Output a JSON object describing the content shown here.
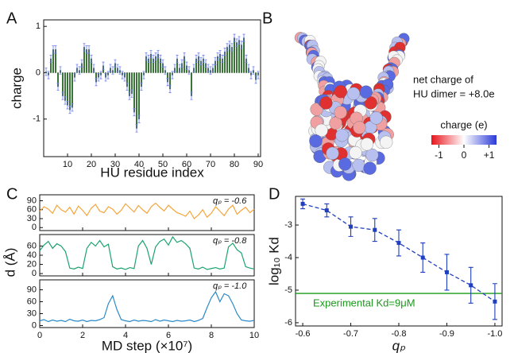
{
  "panel_b": {
    "label": "B",
    "annotation_lines": [
      "net charge of",
      "HU dimer = +8.0e"
    ],
    "colorbar": {
      "title": "charge (e)",
      "lim": [
        -1.3,
        1.3
      ],
      "ticks": [
        -1,
        0,
        {
          "value": 1,
          "label": "+1"
        }
      ]
    }
  },
  "chart_data": [
    {
      "panel_label": "A",
      "type": "bar",
      "xlabel": "HU residue index",
      "ylabel": "charge",
      "color": "#3f8f3a",
      "error_color": "#6a7cf0",
      "x": [
        1,
        2,
        3,
        4,
        5,
        6,
        7,
        8,
        9,
        10,
        11,
        12,
        13,
        14,
        15,
        16,
        17,
        18,
        19,
        20,
        21,
        22,
        23,
        24,
        25,
        26,
        27,
        28,
        29,
        30,
        31,
        32,
        33,
        34,
        35,
        36,
        37,
        38,
        39,
        40,
        41,
        42,
        43,
        44,
        45,
        46,
        47,
        48,
        49,
        50,
        51,
        52,
        53,
        54,
        55,
        56,
        57,
        58,
        59,
        60,
        61,
        62,
        63,
        64,
        65,
        66,
        67,
        68,
        69,
        70,
        71,
        72,
        73,
        74,
        75,
        76,
        77,
        78,
        79,
        80,
        81,
        82,
        83,
        84,
        85,
        86,
        87,
        88,
        89,
        90
      ],
      "values": [
        0.02,
        -0.05,
        0.3,
        0.5,
        0.5,
        -0.3,
        0.05,
        -0.5,
        -0.6,
        -0.7,
        -0.8,
        -0.75,
        -0.1,
        0.1,
        0.05,
        0.2,
        0.55,
        0.5,
        0.5,
        0.3,
        0.1,
        -0.2,
        -0.1,
        -0.05,
        0.15,
        -0.1,
        -0.05,
        0.1,
        0.05,
        0.2,
        0.1,
        0.05,
        -0.05,
        -0.1,
        -0.3,
        -0.5,
        -0.45,
        -0.85,
        -1.2,
        -1.0,
        -0.3,
        -0.05,
        0.35,
        0.3,
        0.4,
        0.3,
        0.35,
        0.4,
        0.3,
        0.2,
        0.05,
        -0.2,
        -0.35,
        -0.05,
        0.1,
        0.3,
        0.1,
        0.2,
        0.35,
        0.15,
        0.05,
        -0.5,
        0.1,
        0.3,
        0.35,
        0.25,
        0.3,
        0.2,
        0.1,
        0.05,
        0.1,
        0.25,
        0.35,
        0.4,
        0.3,
        0.45,
        0.55,
        0.6,
        0.55,
        0.75,
        0.65,
        0.7,
        0.6,
        0.75,
        0.3,
        0.1,
        -0.05,
        0.05,
        -0.15,
        -0.05
      ],
      "error": 0.08,
      "xlim": [
        0,
        91
      ],
      "ylim": [
        -1.81,
        1.14
      ],
      "xticks": [
        10,
        20,
        30,
        40,
        50,
        60,
        70,
        80,
        90
      ],
      "yticks": [
        -1,
        0,
        1
      ]
    },
    {
      "panel_label": "C",
      "type": "line",
      "xlabel": "MD step (×10⁷)",
      "ylabel": "d (Å)",
      "xlim": [
        0,
        10
      ],
      "xticks": [
        0,
        2,
        4,
        6,
        8,
        10
      ],
      "x": [
        0,
        0.2,
        0.4,
        0.6,
        0.8,
        1,
        1.2,
        1.4,
        1.6,
        1.8,
        2,
        2.2,
        2.4,
        2.6,
        2.8,
        3,
        3.2,
        3.4,
        3.6,
        3.8,
        4,
        4.2,
        4.4,
        4.6,
        4.8,
        5,
        5.2,
        5.4,
        5.6,
        5.8,
        6,
        6.2,
        6.4,
        6.6,
        6.8,
        7,
        7.2,
        7.4,
        7.6,
        7.8,
        8,
        8.2,
        8.4,
        8.6,
        8.8,
        9,
        9.2,
        9.4,
        9.6,
        9.8,
        10
      ],
      "subplots": [
        {
          "annotation": "qₚ = -0.6",
          "color": "#f5a53a",
          "ylim": [
            -10,
            110
          ],
          "yticks": [
            0,
            30,
            60,
            90
          ],
          "values": [
            55,
            70,
            62,
            48,
            75,
            60,
            52,
            68,
            45,
            72,
            58,
            40,
            65,
            78,
            55,
            50,
            70,
            62,
            45,
            58,
            80,
            66,
            52,
            74,
            60,
            48,
            70,
            82,
            68,
            56,
            75,
            62,
            50,
            45,
            38,
            55,
            30,
            42,
            60,
            35,
            48,
            70,
            55,
            40,
            62,
            75,
            45,
            58,
            68,
            50,
            62
          ]
        },
        {
          "annotation": "qₚ = -0.8",
          "color": "#1aa36e",
          "ylim": [
            -5,
            85
          ],
          "yticks": [
            0,
            20,
            40,
            60
          ],
          "values": [
            50,
            62,
            70,
            55,
            65,
            60,
            48,
            12,
            10,
            14,
            11,
            55,
            68,
            60,
            72,
            58,
            64,
            15,
            10,
            12,
            9,
            13,
            11,
            60,
            72,
            55,
            20,
            58,
            70,
            75,
            62,
            80,
            68,
            72,
            65,
            55,
            12,
            10,
            14,
            9,
            11,
            13,
            10,
            12,
            58,
            66,
            52,
            45,
            15,
            12,
            10
          ]
        },
        {
          "annotation": "qₚ = -1.0",
          "color": "#2a8ac8",
          "ylim": [
            -5,
            115
          ],
          "yticks": [
            0,
            30,
            60,
            90
          ],
          "values": [
            12,
            15,
            10,
            14,
            11,
            13,
            10,
            16,
            12,
            11,
            14,
            10,
            13,
            12,
            15,
            20,
            55,
            75,
            40,
            15,
            12,
            10,
            14,
            11,
            13,
            12,
            10,
            15,
            11,
            14,
            12,
            10,
            13,
            11,
            12,
            14,
            10,
            13,
            18,
            45,
            70,
            85,
            60,
            80,
            75,
            55,
            30,
            14,
            12,
            11,
            13
          ]
        }
      ]
    },
    {
      "panel_label": "D",
      "type": "line",
      "xlabel": "qₚ",
      "ylabel": "log₁₀ Kd",
      "color": "#1f3fbf",
      "x": [
        -0.6,
        -0.65,
        -0.7,
        -0.75,
        -0.8,
        -0.85,
        -0.9,
        -0.95,
        -1.0
      ],
      "values": [
        -2.35,
        -2.55,
        -3.05,
        -3.15,
        -3.55,
        -4.0,
        -4.45,
        -4.85,
        -5.35
      ],
      "errors": [
        0.15,
        0.2,
        0.3,
        0.35,
        0.4,
        0.45,
        0.55,
        0.55,
        0.55
      ],
      "xlim": [
        -0.585,
        -1.015
      ],
      "ylim": [
        -6.1,
        -2.12
      ],
      "xticks": [
        -0.6,
        -0.7,
        -0.8,
        -0.9,
        {
          "value": -1,
          "label": "-1.0"
        }
      ],
      "yticks": [
        -6,
        -5,
        -4,
        -3
      ],
      "reference_line": {
        "value": -5.1,
        "label": "Experimental Kd=9μM",
        "color": "#1a9a1a"
      }
    }
  ]
}
